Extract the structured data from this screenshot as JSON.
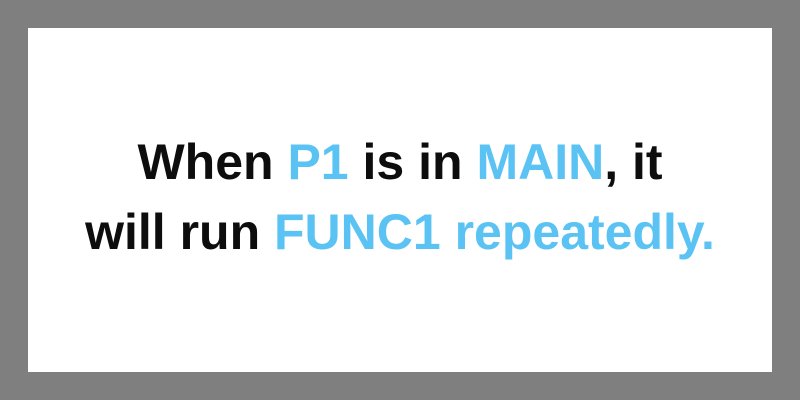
{
  "colors": {
    "frame": "#7f7f7f",
    "card": "#ffffff",
    "text": "#0d0d0d",
    "highlight": "#5bc3f3"
  },
  "message": {
    "line1": {
      "t1": "When ",
      "h1": "P1",
      "t2": " is in ",
      "h2": "MAIN",
      "t3": ", it"
    },
    "line2": {
      "t1": "will run ",
      "h1": "FUNC1 repeatedly."
    }
  }
}
